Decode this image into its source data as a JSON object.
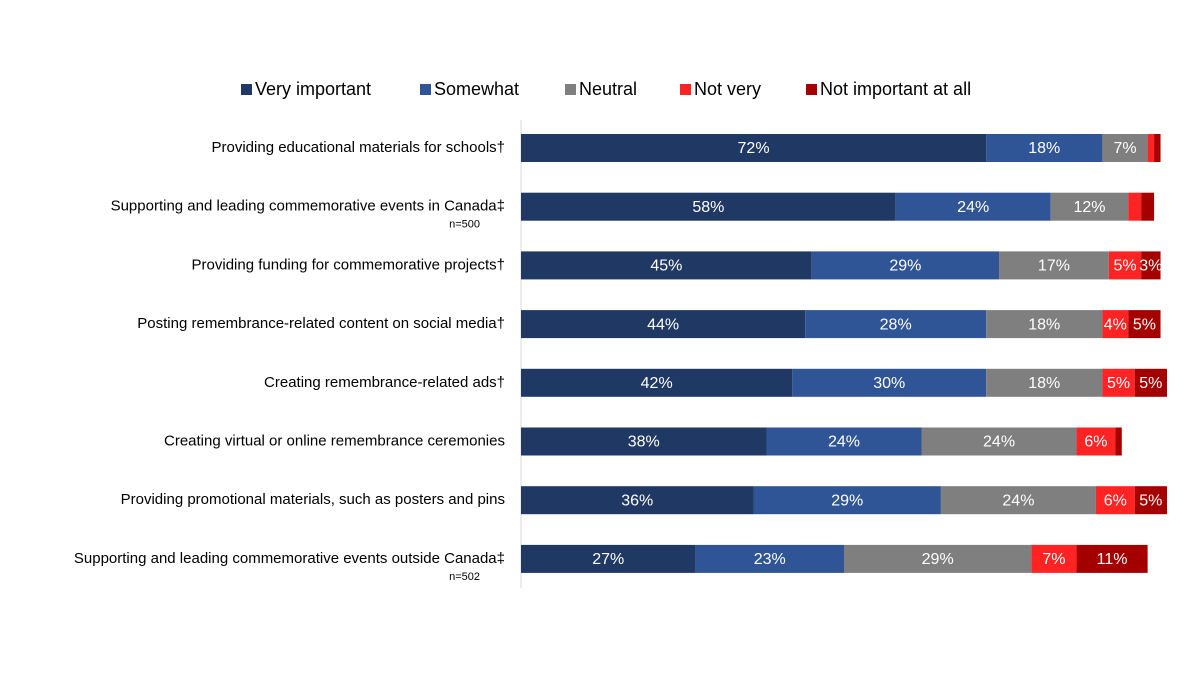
{
  "chart_data": {
    "type": "stacked-bar-horizontal",
    "categories": [
      "Providing educational materials for schools†",
      "Supporting and leading commemorative events in Canada‡",
      "Providing funding for commemorative projects†",
      "Posting remembrance-related content on social media†",
      "Creating remembrance-related ads†",
      "Creating virtual or online remembrance ceremonies",
      "Providing promotional materials, such as posters and pins",
      "Supporting and leading commemorative events outside Canada‡"
    ],
    "category_notes": [
      null,
      "n=500",
      null,
      null,
      null,
      null,
      null,
      "n=502"
    ],
    "xlim": [
      0,
      100
    ],
    "legend": "top",
    "series": [
      {
        "name": "Very important",
        "color": "#203864",
        "values": [
          72,
          58,
          45,
          44,
          42,
          38,
          36,
          27
        ],
        "value_labels": [
          "72%",
          "58%",
          "45%",
          "44%",
          "42%",
          "38%",
          "36%",
          "27%"
        ]
      },
      {
        "name": "Somewhat",
        "color": "#2f5597",
        "values": [
          18,
          24,
          29,
          28,
          30,
          24,
          29,
          23
        ],
        "value_labels": [
          "18%",
          "24%",
          "29%",
          "28%",
          "30%",
          "24%",
          "29%",
          "23%"
        ]
      },
      {
        "name": "Neutral",
        "color": "#7f7f7f",
        "values": [
          7,
          12,
          17,
          18,
          18,
          24,
          24,
          29
        ],
        "value_labels": [
          "7%",
          "12%",
          "17%",
          "18%",
          "18%",
          "24%",
          "24%",
          "29%"
        ]
      },
      {
        "name": "Not very",
        "color": "#ff2323",
        "values": [
          1,
          2,
          5,
          4,
          5,
          6,
          6,
          7
        ],
        "value_labels": [
          null,
          null,
          "5%",
          "4%",
          "5%",
          "6%",
          "6%",
          "7%"
        ]
      },
      {
        "name": "Not important at all",
        "color": "#a50000",
        "values": [
          1,
          2,
          3,
          5,
          5,
          1,
          5,
          11
        ],
        "value_labels": [
          null,
          null,
          "3%",
          "5%",
          "5%",
          null,
          "5%",
          "11%"
        ]
      }
    ]
  }
}
